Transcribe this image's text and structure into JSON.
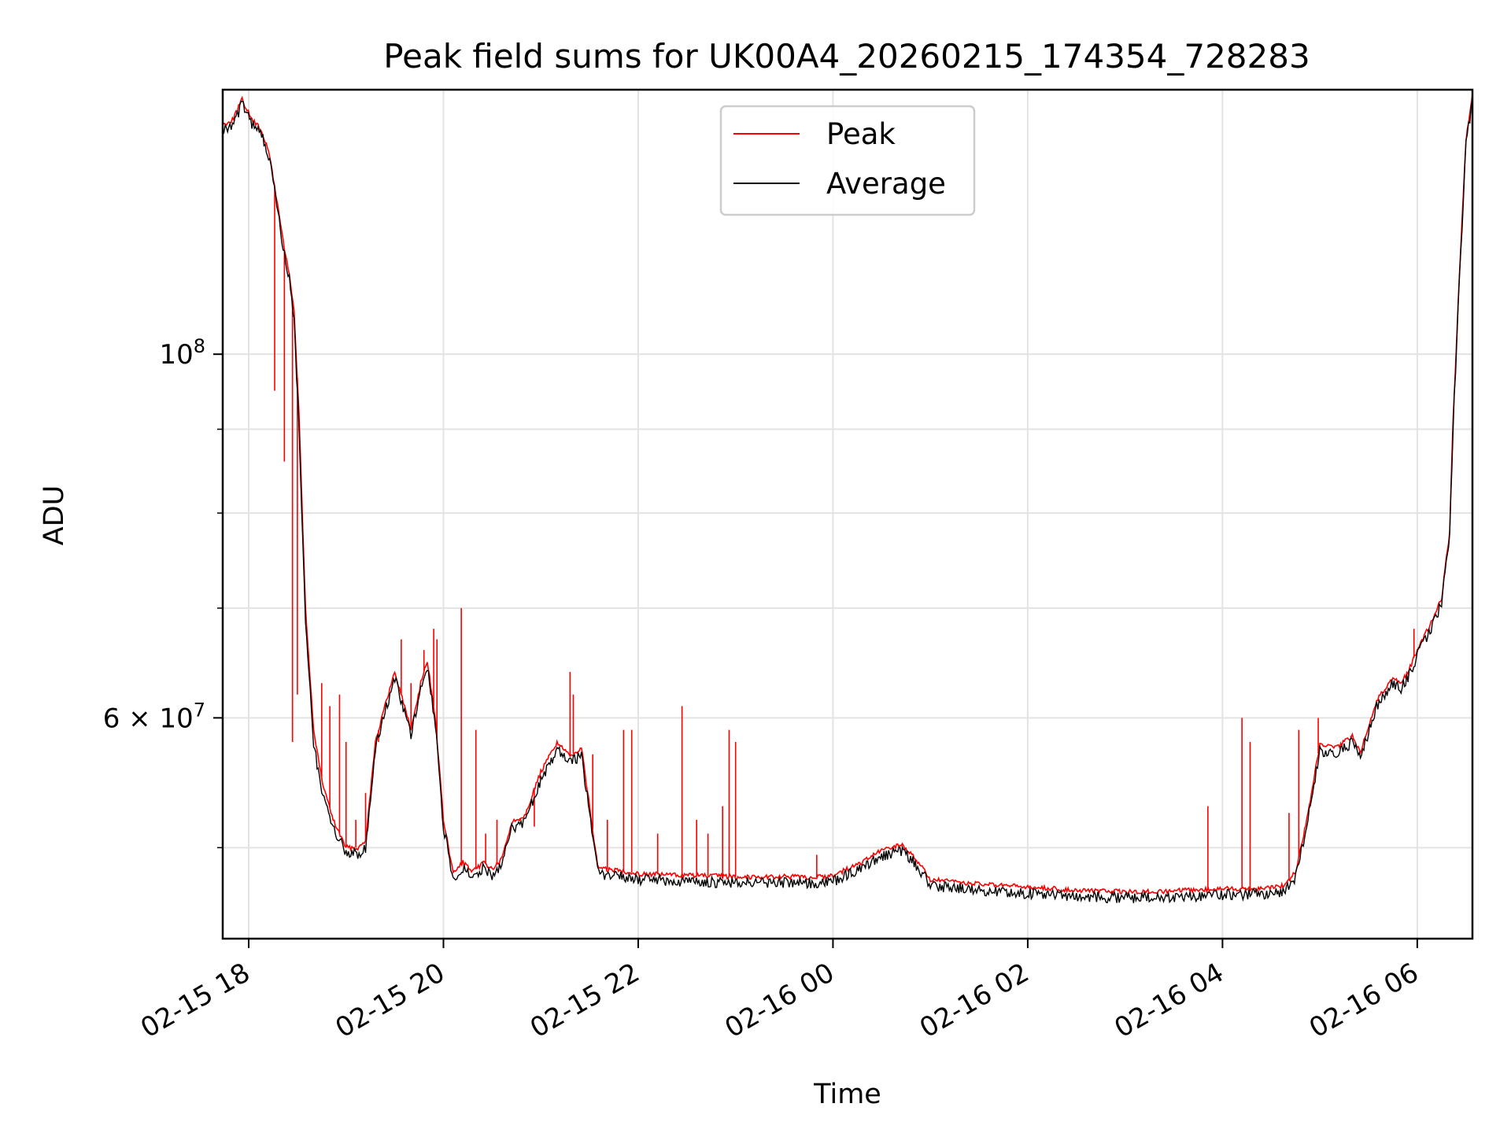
{
  "chart_data": {
    "type": "line",
    "title": "Peak field sums for UK00A4_20260215_174354_728283",
    "xlabel": "Time",
    "ylabel": "ADU",
    "yscale": "log",
    "grid": true,
    "legend_position": "top-center",
    "x_tick_labels": [
      "02-15 18",
      "02-15 20",
      "02-15 22",
      "02-16 00",
      "02-16 02",
      "02-16 04",
      "02-16 06"
    ],
    "y_major_ticks": [
      {
        "value": 100000000,
        "base": "10",
        "exp": "8"
      },
      {
        "value": 60000000,
        "mantissa": "6",
        "base": "10",
        "exp": "7"
      }
    ],
    "y_minor_ticks": [
      50000000,
      70000000,
      80000000,
      90000000
    ],
    "xlim": [
      "2026-02-15 17:44",
      "2026-02-16 06:34"
    ],
    "ylim": [
      44000000,
      145000000
    ],
    "series": [
      {
        "name": "Peak",
        "color": "#ff0000",
        "x": [
          "2026-02-15 17:44",
          "2026-02-15 17:50",
          "2026-02-15 17:56",
          "2026-02-15 18:02",
          "2026-02-15 18:08",
          "2026-02-15 18:13",
          "2026-02-15 18:18",
          "2026-02-15 18:22",
          "2026-02-15 18:25",
          "2026-02-15 18:28",
          "2026-02-15 18:31",
          "2026-02-15 18:35",
          "2026-02-15 18:40",
          "2026-02-15 18:45",
          "2026-02-15 18:52",
          "2026-02-15 19:00",
          "2026-02-15 19:08",
          "2026-02-15 19:12",
          "2026-02-15 19:18",
          "2026-02-15 19:24",
          "2026-02-15 19:30",
          "2026-02-15 19:36",
          "2026-02-15 19:40",
          "2026-02-15 19:46",
          "2026-02-15 19:50",
          "2026-02-15 19:55",
          "2026-02-15 20:00",
          "2026-02-15 20:06",
          "2026-02-15 20:12",
          "2026-02-15 20:18",
          "2026-02-15 20:25",
          "2026-02-15 20:30",
          "2026-02-15 20:36",
          "2026-02-15 20:42",
          "2026-02-15 20:50",
          "2026-02-15 21:00",
          "2026-02-15 21:10",
          "2026-02-15 21:18",
          "2026-02-15 21:25",
          "2026-02-15 21:30",
          "2026-02-15 21:35",
          "2026-02-15 21:40",
          "2026-02-15 21:50",
          "2026-02-15 22:00",
          "2026-02-15 22:30",
          "2026-02-15 23:00",
          "2026-02-15 23:30",
          "2026-02-15 23:50",
          "2026-02-16 00:00",
          "2026-02-16 00:15",
          "2026-02-16 00:30",
          "2026-02-16 00:35",
          "2026-02-16 00:42",
          "2026-02-16 00:50",
          "2026-02-16 01:00",
          "2026-02-16 01:30",
          "2026-02-16 02:00",
          "2026-02-16 02:30",
          "2026-02-16 03:00",
          "2026-02-16 03:20",
          "2026-02-16 03:40",
          "2026-02-16 04:00",
          "2026-02-16 04:20",
          "2026-02-16 04:38",
          "2026-02-16 04:45",
          "2026-02-16 04:52",
          "2026-02-16 05:00",
          "2026-02-16 05:10",
          "2026-02-16 05:20",
          "2026-02-16 05:25",
          "2026-02-16 05:35",
          "2026-02-16 05:45",
          "2026-02-16 05:50",
          "2026-02-16 05:55",
          "2026-02-16 06:00",
          "2026-02-16 06:05",
          "2026-02-16 06:10",
          "2026-02-16 06:15",
          "2026-02-16 06:20",
          "2026-02-16 06:22",
          "2026-02-16 06:26",
          "2026-02-16 06:30",
          "2026-02-16 06:34"
        ],
        "y": [
          138000000,
          139000000,
          143000000,
          139000000,
          137000000,
          132000000,
          123000000,
          116000000,
          112000000,
          106000000,
          92000000,
          70000000,
          59000000,
          55000000,
          52000000,
          50000000,
          50000000,
          50500000,
          58000000,
          61000000,
          64000000,
          61000000,
          59000000,
          63000000,
          65000000,
          60000000,
          52000000,
          48200000,
          49000000,
          48300000,
          49000000,
          48500000,
          49200000,
          51800000,
          52300000,
          55600000,
          58000000,
          56800000,
          57600000,
          53000000,
          48700000,
          48500000,
          48400000,
          48200000,
          48100000,
          48000000,
          48000000,
          47950000,
          48100000,
          48800000,
          49800000,
          50000000,
          50200000,
          49400000,
          47800000,
          47500000,
          47300000,
          47100000,
          47000000,
          47000000,
          47100000,
          47200000,
          47200000,
          47400000,
          48300000,
          52000000,
          57800000,
          57500000,
          58500000,
          57200000,
          61500000,
          63500000,
          63000000,
          64200000,
          66000000,
          67500000,
          69000000,
          71000000,
          78000000,
          91000000,
          112000000,
          135000000,
          144000000
        ]
      },
      {
        "name": "Average",
        "color": "#000000",
        "x": [
          "2026-02-15 17:44",
          "2026-02-15 17:50",
          "2026-02-15 17:56",
          "2026-02-15 18:02",
          "2026-02-15 18:08",
          "2026-02-15 18:13",
          "2026-02-15 18:18",
          "2026-02-15 18:22",
          "2026-02-15 18:25",
          "2026-02-15 18:28",
          "2026-02-15 18:31",
          "2026-02-15 18:35",
          "2026-02-15 18:40",
          "2026-02-15 18:45",
          "2026-02-15 18:52",
          "2026-02-15 19:00",
          "2026-02-15 19:08",
          "2026-02-15 19:12",
          "2026-02-15 19:18",
          "2026-02-15 19:24",
          "2026-02-15 19:30",
          "2026-02-15 19:36",
          "2026-02-15 19:40",
          "2026-02-15 19:46",
          "2026-02-15 19:50",
          "2026-02-15 19:55",
          "2026-02-15 20:00",
          "2026-02-15 20:06",
          "2026-02-15 20:12",
          "2026-02-15 20:18",
          "2026-02-15 20:25",
          "2026-02-15 20:30",
          "2026-02-15 20:36",
          "2026-02-15 20:42",
          "2026-02-15 20:50",
          "2026-02-15 21:00",
          "2026-02-15 21:10",
          "2026-02-15 21:18",
          "2026-02-15 21:25",
          "2026-02-15 21:30",
          "2026-02-15 21:35",
          "2026-02-15 21:40",
          "2026-02-15 21:50",
          "2026-02-15 22:00",
          "2026-02-15 22:30",
          "2026-02-15 23:00",
          "2026-02-15 23:30",
          "2026-02-15 23:50",
          "2026-02-16 00:00",
          "2026-02-16 00:15",
          "2026-02-16 00:30",
          "2026-02-16 00:35",
          "2026-02-16 00:42",
          "2026-02-16 00:50",
          "2026-02-16 01:00",
          "2026-02-16 01:30",
          "2026-02-16 02:00",
          "2026-02-16 02:30",
          "2026-02-16 03:00",
          "2026-02-16 03:20",
          "2026-02-16 03:40",
          "2026-02-16 04:00",
          "2026-02-16 04:20",
          "2026-02-16 04:38",
          "2026-02-16 04:45",
          "2026-02-16 04:52",
          "2026-02-16 05:00",
          "2026-02-16 05:10",
          "2026-02-16 05:20",
          "2026-02-16 05:25",
          "2026-02-16 05:35",
          "2026-02-16 05:45",
          "2026-02-16 05:50",
          "2026-02-16 05:55",
          "2026-02-16 06:00",
          "2026-02-16 06:05",
          "2026-02-16 06:10",
          "2026-02-16 06:15",
          "2026-02-16 06:20",
          "2026-02-16 06:22",
          "2026-02-16 06:26",
          "2026-02-16 06:30",
          "2026-02-16 06:34"
        ],
        "y": [
          137000000,
          138000000,
          142000000,
          138000000,
          136000000,
          131000000,
          122000000,
          115000000,
          111000000,
          105000000,
          90000000,
          69000000,
          58000000,
          54000000,
          51500000,
          49600000,
          49600000,
          50000000,
          57500000,
          60500000,
          63500000,
          60500000,
          58500000,
          62500000,
          64500000,
          59500000,
          51500000,
          47900000,
          48600000,
          47900000,
          48600000,
          48100000,
          48800000,
          51300000,
          51800000,
          55000000,
          57400000,
          56300000,
          57000000,
          52500000,
          48300000,
          48100000,
          48000000,
          47800000,
          47700000,
          47600000,
          47600000,
          47550000,
          47700000,
          48400000,
          49400000,
          49600000,
          49800000,
          49000000,
          47400000,
          47100000,
          46900000,
          46700000,
          46600000,
          46600000,
          46700000,
          46800000,
          46800000,
          47000000,
          47900000,
          51600000,
          57300000,
          57000000,
          58000000,
          56700000,
          61000000,
          63000000,
          62500000,
          63700000,
          65500000,
          67000000,
          68500000,
          70500000,
          77500000,
          90000000,
          111000000,
          134000000,
          143000000
        ]
      }
    ],
    "spikes": {
      "series": "Peak",
      "x": [
        "2026-02-15 18:16",
        "2026-02-15 18:22",
        "2026-02-15 18:27",
        "2026-02-15 18:30",
        "2026-02-15 18:45",
        "2026-02-15 18:50",
        "2026-02-15 18:56",
        "2026-02-15 19:00",
        "2026-02-15 19:06",
        "2026-02-15 19:12",
        "2026-02-15 19:14",
        "2026-02-15 19:20",
        "2026-02-15 19:34",
        "2026-02-15 19:40",
        "2026-02-15 19:48",
        "2026-02-15 19:54",
        "2026-02-15 19:56",
        "2026-02-15 20:11",
        "2026-02-15 20:20",
        "2026-02-15 20:26",
        "2026-02-15 20:33",
        "2026-02-15 20:47",
        "2026-02-15 20:56",
        "2026-02-15 21:18",
        "2026-02-15 21:20",
        "2026-02-15 21:32",
        "2026-02-15 21:41",
        "2026-02-15 21:51",
        "2026-02-15 21:56",
        "2026-02-15 22:12",
        "2026-02-15 22:27",
        "2026-02-15 22:36",
        "2026-02-15 22:43",
        "2026-02-15 22:52",
        "2026-02-15 22:56",
        "2026-02-15 23:00",
        "2026-02-15 23:50",
        "2026-02-16 03:51",
        "2026-02-16 04:12",
        "2026-02-16 04:17",
        "2026-02-16 04:41",
        "2026-02-16 04:47",
        "2026-02-16 04:59",
        "2026-02-16 05:19",
        "2026-02-16 05:58"
      ],
      "y": [
        95000000,
        86000000,
        58000000,
        62000000,
        63000000,
        61000000,
        62000000,
        58000000,
        52000000,
        54000000,
        53000000,
        58000000,
        67000000,
        63000000,
        66000000,
        68000000,
        67000000,
        70000000,
        59000000,
        51000000,
        52000000,
        52000000,
        51500000,
        64000000,
        62000000,
        57000000,
        52000000,
        59000000,
        59000000,
        51000000,
        61000000,
        52000000,
        51000000,
        53000000,
        59000000,
        58000000,
        49500000,
        53000000,
        60000000,
        58000000,
        52500000,
        59000000,
        60000000,
        58500000,
        68000000
      ]
    }
  },
  "legend": {
    "items": [
      {
        "label": "Peak",
        "color": "#ff0000"
      },
      {
        "label": "Average",
        "color": "#000000"
      }
    ]
  }
}
